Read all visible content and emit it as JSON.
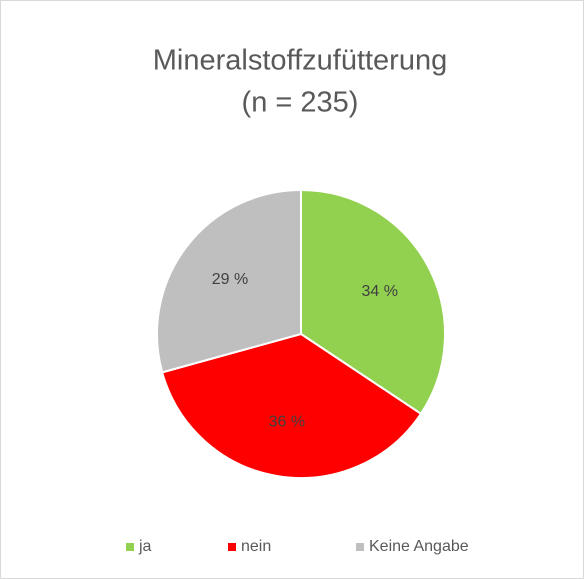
{
  "chart_data": {
    "type": "pie",
    "title": "Mineralstoffzufütterung",
    "subtitle": "(n = 235)",
    "categories": [
      "ja",
      "nein",
      "Keine Angabe"
    ],
    "values": [
      34,
      36,
      29
    ],
    "value_labels": [
      "34 %",
      "36 %",
      "29 %"
    ],
    "colors": [
      "#92d050",
      "#ff0000",
      "#bfbfbf"
    ],
    "legend": "bottom"
  }
}
